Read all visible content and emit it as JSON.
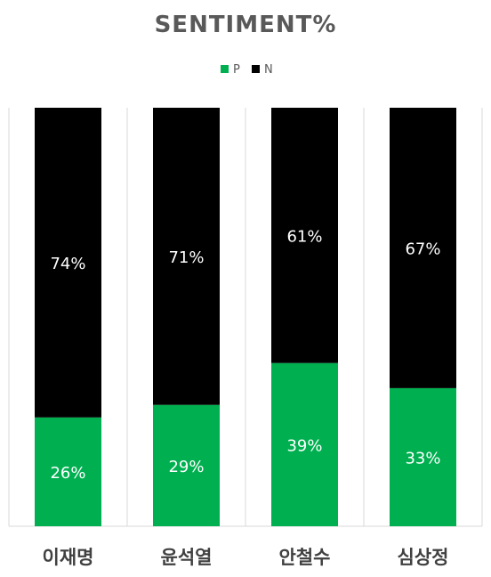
{
  "chart_data": {
    "type": "bar",
    "stacked": true,
    "percent": true,
    "title": "SENTIMENT%",
    "categories": [
      "이재명",
      "윤석열",
      "안철수",
      "심상정"
    ],
    "series": [
      {
        "name": "P",
        "color": "#00b050",
        "values": [
          26,
          29,
          39,
          33
        ]
      },
      {
        "name": "N",
        "color": "#000000",
        "values": [
          74,
          71,
          61,
          67
        ]
      }
    ],
    "ylim": [
      0,
      100
    ],
    "legend_position": "top",
    "grid": true,
    "data_labels": [
      [
        "26%",
        "29%",
        "39%",
        "33%"
      ],
      [
        "74%",
        "71%",
        "61%",
        "67%"
      ]
    ]
  }
}
